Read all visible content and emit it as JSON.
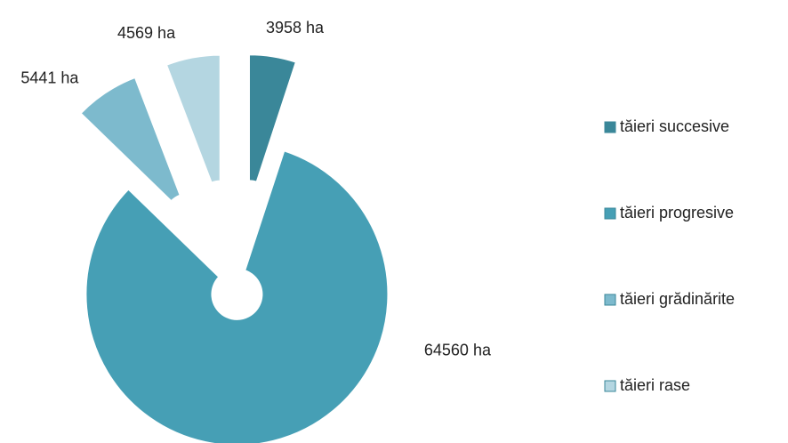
{
  "chart_data": {
    "type": "pie",
    "categories": [
      "tăieri succesive",
      "tăieri progresive",
      "tăieri grădinărite",
      "tăieri rase"
    ],
    "values": [
      3958,
      64560,
      5441,
      4569
    ],
    "value_labels": [
      "3958 ha",
      "64560 ha",
      "5441 ha",
      "4569 ha"
    ],
    "colors": [
      "#3a8799",
      "#469fb5",
      "#7dbacd",
      "#b4d6e1"
    ],
    "legend": "right"
  }
}
